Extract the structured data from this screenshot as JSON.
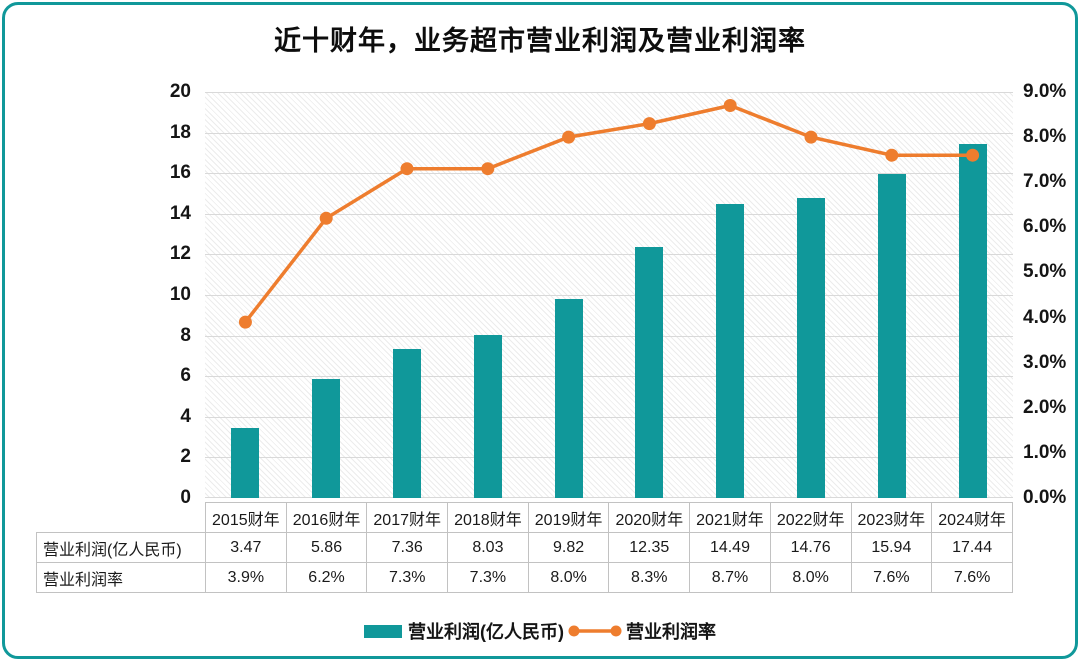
{
  "title": "近十财年，业务超市营业利润及营业利润率",
  "colors": {
    "teal": "#10989a",
    "orange": "#ee7d2e",
    "grid": "#d9d9d9",
    "table_border": "#c2c2c2",
    "hatch": "#ececec"
  },
  "chart_data": {
    "type": "combo-bar-line",
    "title": "近十财年，业务超市营业利润及营业利润率",
    "categories": [
      "2015财年",
      "2016财年",
      "2017财年",
      "2018财年",
      "2019财年",
      "2020财年",
      "2021财年",
      "2022财年",
      "2023财年",
      "2024财年"
    ],
    "series": [
      {
        "name": "营业利润(亿人民币)",
        "type": "bar",
        "axis": "left",
        "color": "#10989a",
        "decimals": 2,
        "suffix": "",
        "values": [
          3.47,
          5.86,
          7.36,
          8.03,
          9.82,
          12.35,
          14.49,
          14.76,
          15.94,
          17.44
        ]
      },
      {
        "name": "营业利润率",
        "type": "line",
        "axis": "right",
        "color": "#ee7d2e",
        "decimals": 1,
        "suffix": "%",
        "values": [
          3.9,
          6.2,
          7.3,
          7.3,
          8.0,
          8.3,
          8.7,
          8.0,
          7.6,
          7.6
        ]
      }
    ],
    "left_axis": {
      "min": 0,
      "max": 20,
      "ticks": [
        "0",
        "2",
        "4",
        "6",
        "8",
        "10",
        "12",
        "14",
        "16",
        "18",
        "20"
      ]
    },
    "right_axis": {
      "min": 0,
      "max": 9,
      "ticks": [
        "0.0%",
        "1.0%",
        "2.0%",
        "3.0%",
        "4.0%",
        "5.0%",
        "6.0%",
        "7.0%",
        "8.0%",
        "9.0%"
      ]
    },
    "grid": true,
    "legend_position": "bottom",
    "plot_background": "diagonal-hatch"
  }
}
